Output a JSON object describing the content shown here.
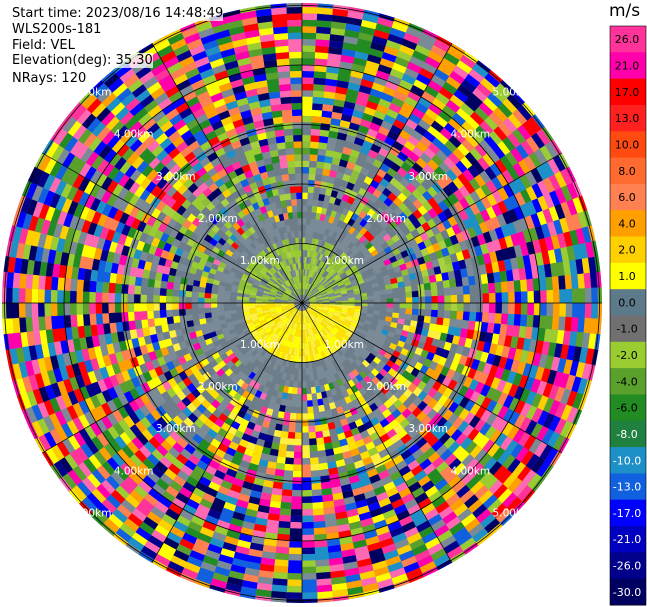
{
  "header": {
    "start_time": "Start time: 2023/08/16 14:48:49",
    "instrument": "WLS200s-181",
    "field": "Field: VEL",
    "elevation": "Elevation(deg): 35.30",
    "nrays": "NRays: 120"
  },
  "chart_data": {
    "type": "heatmap",
    "projection": "polar (PPI)",
    "field": "VEL",
    "n_rays": 120,
    "range_rings_km": [
      "1.00km",
      "2.00km",
      "3.00km",
      "4.00km",
      "5.00km"
    ],
    "colorbar": {
      "title": "m/s",
      "ticks": [
        "26.0",
        "21.0",
        "17.0",
        "13.0",
        "10.0",
        "8.0",
        "6.0",
        "4.0",
        "2.0",
        "1.0",
        "0.0",
        "-1.0",
        "-2.0",
        "-4.0",
        "-6.0",
        "-8.0",
        "-10.0",
        "-13.0",
        "-17.0",
        "-21.0",
        "-26.0",
        "-30.0"
      ],
      "colors": [
        "#ff3399",
        "#ff00aa",
        "#ff0000",
        "#ff2020",
        "#ff4a10",
        "#ff6a30",
        "#ff8050",
        "#ffa000",
        "#ffd000",
        "#ffff00",
        "#5d7a8a",
        "#707070",
        "#9acd32",
        "#5aa02c",
        "#228b22",
        "#208040",
        "#1e90c8",
        "#1060e0",
        "#0000ff",
        "#0000c0",
        "#00008b",
        "#000060"
      ]
    }
  }
}
